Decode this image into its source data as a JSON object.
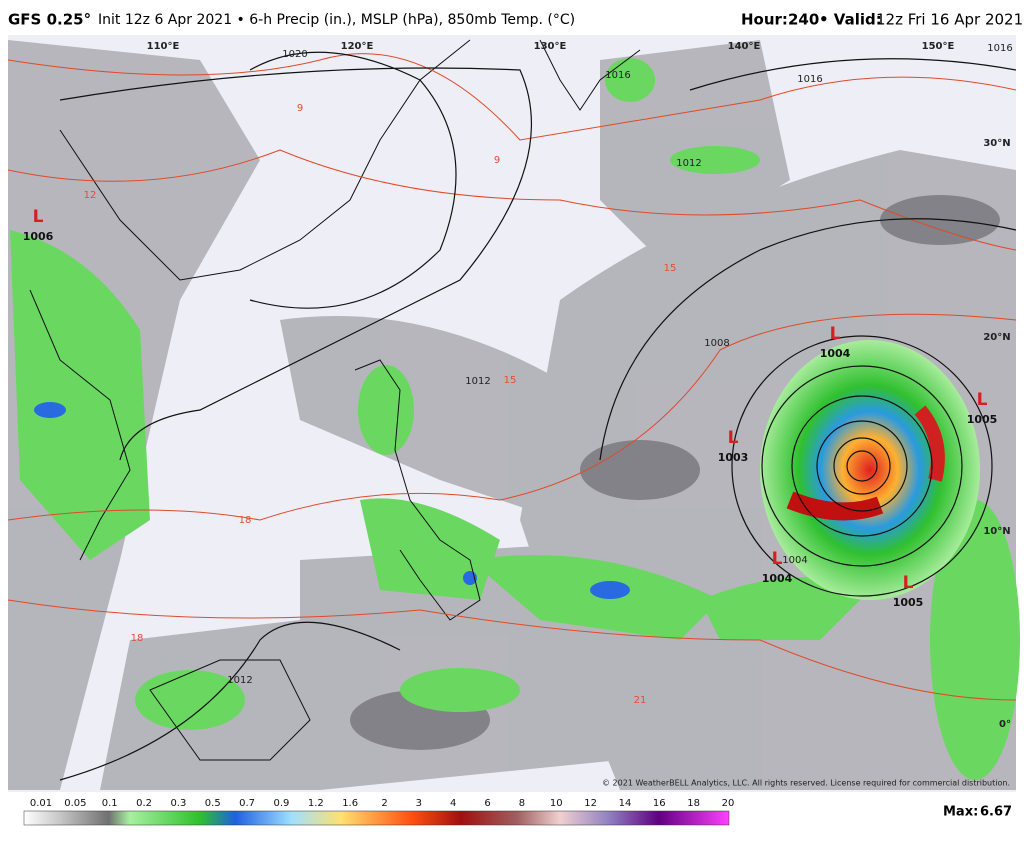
{
  "header": {
    "model": "GFS 0.25°",
    "description": "Init 12z 6 Apr 2021 • 6-h Precip (in.), MSLP (hPa), 850mb Temp. (°C)",
    "hour_label": "Hour:",
    "hour": "240",
    "valid_label": "• Valid:",
    "valid": "12z Fri 16 Apr 2021"
  },
  "map": {
    "longitude_labels": [
      "110°E",
      "120°E",
      "130°E",
      "140°E",
      "150°E"
    ],
    "latitude_labels": [
      "30°N",
      "20°N",
      "10°N",
      "0°"
    ],
    "lows": [
      {
        "symbol": "L",
        "pressure": "1006"
      },
      {
        "symbol": "L",
        "pressure": "1004"
      },
      {
        "symbol": "L",
        "pressure": "1003"
      },
      {
        "symbol": "L",
        "pressure": "1005"
      },
      {
        "symbol": "L",
        "pressure": "1004"
      },
      {
        "symbol": "L",
        "pressure": "1005"
      }
    ],
    "isobar_labels": [
      "1020",
      "1016",
      "1016",
      "1012",
      "1008",
      "1012",
      "1012",
      "1004",
      "1016"
    ],
    "temperature_labels": [
      "9",
      "9",
      "12",
      "15",
      "15",
      "18",
      "18",
      "21"
    ],
    "copyright": "© 2021 WeatherBELL Analytics, LLC. All rights reserved. License required for commercial distribution."
  },
  "legend": {
    "labels": [
      0.01,
      0.05,
      0.1,
      0.2,
      0.3,
      0.5,
      0.7,
      0.9,
      1.2,
      1.6,
      2,
      3,
      4,
      6,
      8,
      10,
      12,
      14,
      16,
      18,
      20
    ],
    "max_label": "Max:",
    "max": 6.67
  }
}
